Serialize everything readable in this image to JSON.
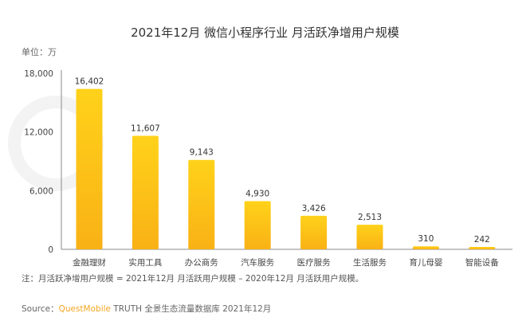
{
  "chart_data": {
    "type": "bar",
    "title": "2021年12月 微信小程序行业 月活跃净增用户规模",
    "unit_label": "单位：万",
    "categories": [
      "金融理财",
      "实用工具",
      "办公商务",
      "汽车服务",
      "医疗服务",
      "生活服务",
      "育儿母婴",
      "智能设备"
    ],
    "values": [
      16402,
      11607,
      9143,
      4930,
      3426,
      2513,
      310,
      242
    ],
    "data_labels": [
      "16,402",
      "11,607",
      "9,143",
      "4,930",
      "3,426",
      "2,513",
      "310",
      "242"
    ],
    "ylim": [
      0,
      18000
    ],
    "yticks": [
      0,
      6000,
      12000,
      18000
    ],
    "ytick_labels": [
      "0",
      "6,000",
      "12,000",
      "18,000"
    ],
    "grid": false,
    "bar_color": "#ffc20e",
    "bar_color_top": "#ffd21a",
    "bar_color_bottom": "#f9b115"
  },
  "note": "注：月活跃净增用户规模 = 2021年12月 月活跃用户规模 – 2020年12月 月活跃用户规模。",
  "source": {
    "label": "Source：",
    "brand": "QuestMobile",
    "text": " TRUTH 全景生态流量数据库 2021年12月"
  },
  "watermark": "QUEST MOBILE"
}
